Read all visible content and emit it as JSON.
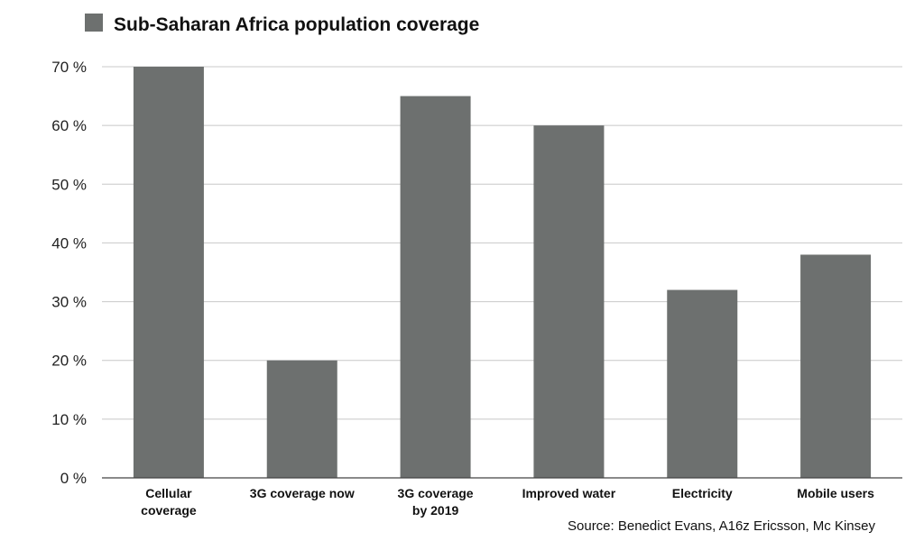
{
  "chart_data": {
    "type": "bar",
    "categories": [
      [
        "Cellular",
        "coverage"
      ],
      [
        "3G coverage now"
      ],
      [
        "3G coverage",
        "by 2019"
      ],
      [
        "Improved water"
      ],
      [
        "Electricity"
      ],
      [
        "Mobile users"
      ]
    ],
    "series": [
      {
        "name": "Sub-Saharan Africa population coverage",
        "values": [
          70,
          20,
          65,
          60,
          32,
          38
        ],
        "color": "#6d706f"
      }
    ],
    "ylim": [
      0,
      70
    ],
    "yticks": [
      0,
      10,
      20,
      30,
      40,
      50,
      60,
      70
    ],
    "ytick_labels": [
      "0 %",
      "10 %",
      "20 %",
      "30 %",
      "40 %",
      "50 %",
      "60 %",
      "70 %"
    ],
    "grid": true,
    "legend_position": "top-left",
    "xlabel": "",
    "ylabel": "",
    "source": "Source: Benedict Evans, A16z Ericsson, Mc Kinsey"
  }
}
